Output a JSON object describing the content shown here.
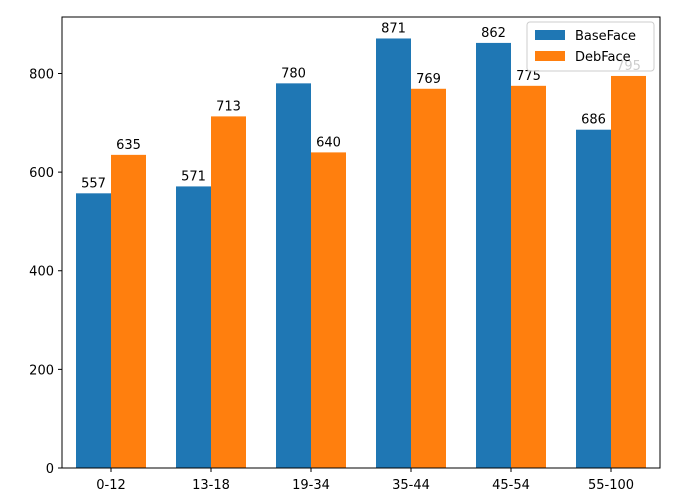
{
  "chart_data": {
    "type": "bar",
    "categories": [
      "0-12",
      "13-18",
      "19-34",
      "35-44",
      "45-54",
      "55-100"
    ],
    "series": [
      {
        "name": "BaseFace",
        "values": [
          557,
          571,
          780,
          871,
          862,
          686
        ],
        "color": "#1f77b4"
      },
      {
        "name": "DebFace",
        "values": [
          635,
          713,
          640,
          769,
          775,
          795
        ],
        "color": "#ff7f0e"
      }
    ],
    "ylim": [
      0,
      914.55
    ],
    "yticks": [
      0,
      200,
      400,
      600,
      800
    ],
    "grid": false,
    "legend": "top-right",
    "xlabel": "",
    "ylabel": "",
    "title": ""
  }
}
